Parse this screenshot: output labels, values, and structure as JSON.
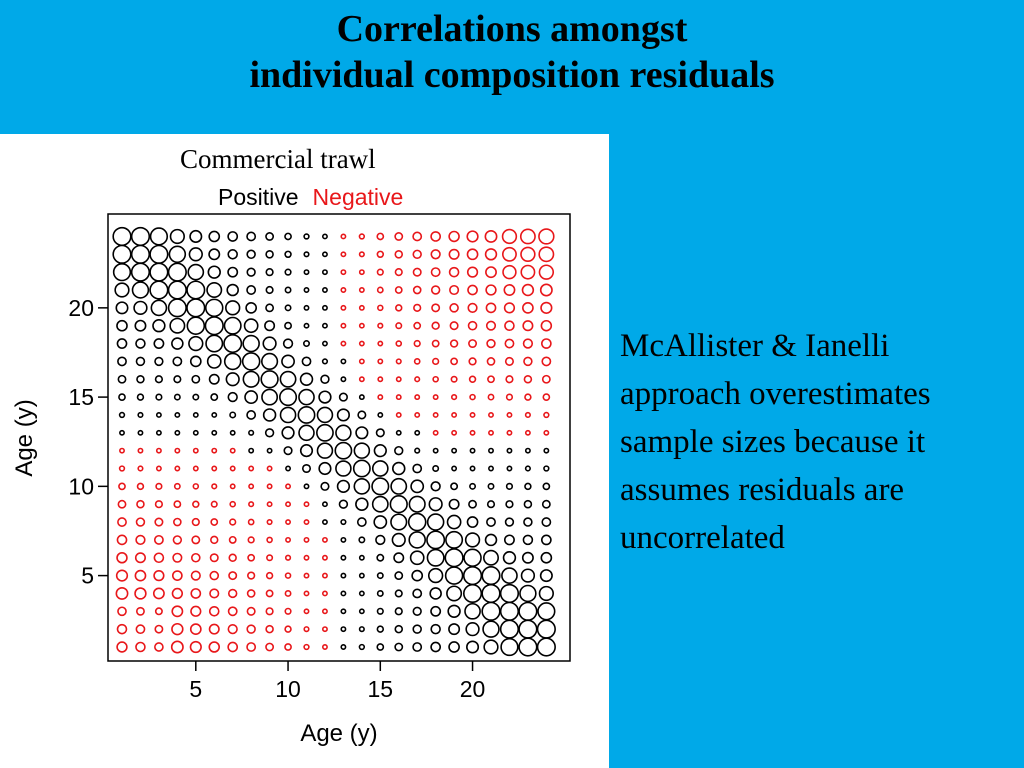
{
  "slide": {
    "title_line1": "Correlations amongst",
    "title_line2": "individual composition residuals",
    "body_lines": [
      "McAllister & Ianelli",
      "approach overestimates",
      "sample sizes because it",
      "assumes residuals are",
      "uncorrelated"
    ]
  },
  "chart_data": {
    "type": "heatmap",
    "title": "Commercial trawl",
    "legend": [
      {
        "name": "Positive",
        "color": "#000000"
      },
      {
        "name": "Negative",
        "color": "#e8171a"
      }
    ],
    "legend_placement": "top",
    "xlabel": "Age (y)",
    "ylabel": "Age (y)",
    "xlim": [
      0,
      25
    ],
    "ylim": [
      0,
      25
    ],
    "xticks": [
      5,
      10,
      15,
      20
    ],
    "yticks": [
      5,
      10,
      15,
      20
    ],
    "ages": [
      1,
      24
    ],
    "grid": false,
    "encoding": "circle area proportional to |correlation|; color by sign"
  }
}
